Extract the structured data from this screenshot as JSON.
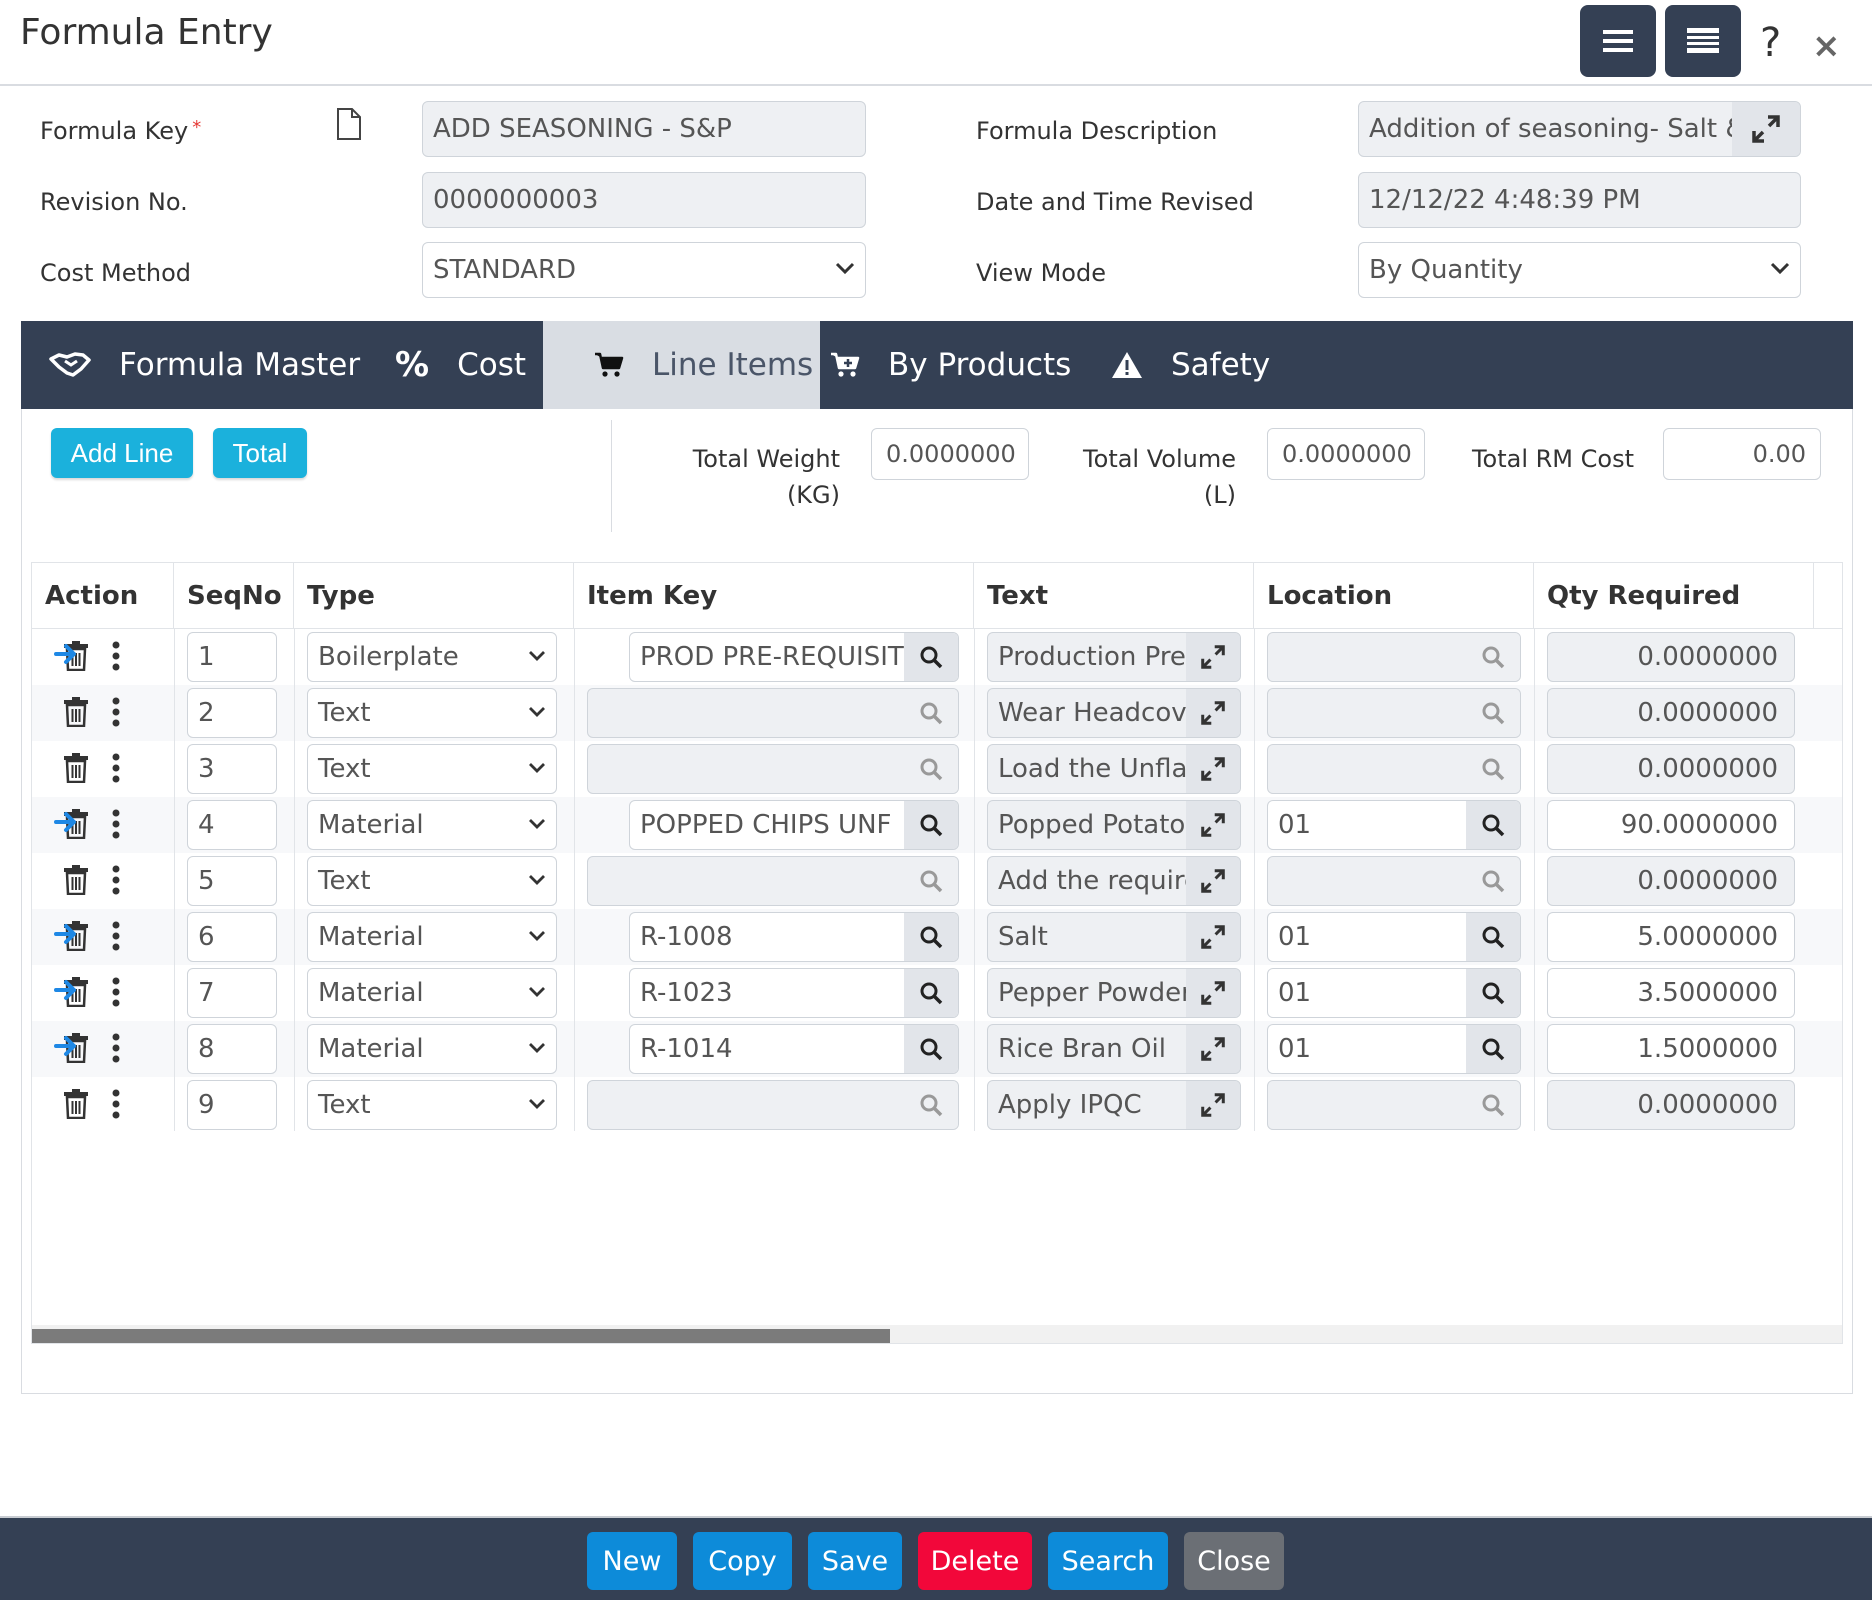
{
  "window": {
    "title": "Formula Entry",
    "help": "?",
    "close": "×"
  },
  "header": {
    "formula_key_label": "Formula Key",
    "required_mark": "*",
    "formula_key_value": "ADD SEASONING - S&P",
    "formula_desc_label": "Formula Description",
    "formula_desc_value": "Addition of seasoning- Salt & F",
    "revision_label": "Revision No.",
    "revision_value": "0000000003",
    "date_label": "Date and Time Revised",
    "date_value": "12/12/22 4:48:39 PM",
    "cost_method_label": "Cost Method",
    "cost_method_value": "STANDARD",
    "view_mode_label": "View Mode",
    "view_mode_value": "By Quantity"
  },
  "tabs": [
    {
      "label": "Formula Master",
      "icon": "handshake-icon"
    },
    {
      "label": "Cost",
      "icon": "percent-icon"
    },
    {
      "label": "Line Items",
      "icon": "cart-icon"
    },
    {
      "label": "By Products",
      "icon": "cart-plus-icon"
    },
    {
      "label": "Safety",
      "icon": "warning-icon"
    }
  ],
  "line_items": {
    "add_line_label": "Add Line",
    "total_label": "Total",
    "total_weight_label_1": "Total Weight",
    "total_weight_label_2": "(KG)",
    "total_weight_value": "0.0000000",
    "total_volume_label_1": "Total Volume",
    "total_volume_label_2": "(L)",
    "total_volume_value": "0.0000000",
    "total_rm_cost_label": "Total RM Cost",
    "total_rm_cost_value": "0.00"
  },
  "grid": {
    "columns": [
      "Action",
      "SeqNo",
      "Type",
      "Item Key",
      "Text",
      "Location",
      "Qty Required"
    ],
    "rows": [
      {
        "seq": "1",
        "type": "Boilerplate",
        "item_key": "PROD PRE-REQUISITE",
        "text": "Production Prer",
        "location": "",
        "qty": "0.0000000",
        "enabled": false
      },
      {
        "seq": "2",
        "type": "Text",
        "item_key": "",
        "text": "Wear Headcove",
        "location": "",
        "qty": "0.0000000",
        "enabled": false
      },
      {
        "seq": "3",
        "type": "Text",
        "item_key": "",
        "text": "Load the Unflav",
        "location": "",
        "qty": "0.0000000",
        "enabled": false
      },
      {
        "seq": "4",
        "type": "Material",
        "item_key": "POPPED CHIPS UNF",
        "text": "Popped Potato",
        "location": "01",
        "qty": "90.0000000",
        "enabled": true
      },
      {
        "seq": "5",
        "type": "Text",
        "item_key": "",
        "text": "Add the require",
        "location": "",
        "qty": "0.0000000",
        "enabled": false
      },
      {
        "seq": "6",
        "type": "Material",
        "item_key": "R-1008",
        "text": "Salt",
        "location": "01",
        "qty": "5.0000000",
        "enabled": true
      },
      {
        "seq": "7",
        "type": "Material",
        "item_key": "R-1023",
        "text": "Pepper Powder",
        "location": "01",
        "qty": "3.5000000",
        "enabled": true
      },
      {
        "seq": "8",
        "type": "Material",
        "item_key": "R-1014",
        "text": "Rice Bran Oil",
        "location": "01",
        "qty": "1.5000000",
        "enabled": true
      },
      {
        "seq": "9",
        "type": "Text",
        "item_key": "",
        "text": "Apply IPQC",
        "location": "",
        "qty": "0.0000000",
        "enabled": false
      }
    ]
  },
  "footer": {
    "new_label": "New",
    "copy_label": "Copy",
    "save_label": "Save",
    "delete_label": "Delete",
    "search_label": "Search",
    "close_label": "Close"
  },
  "colors": {
    "primary_dark": "#344054",
    "accent_blue": "#1bb1dc",
    "footer_blue": "#0d8bd9",
    "delete_red": "#f2073a",
    "close_gray": "#6b6f75",
    "arrow_blue": "#1e88e5"
  }
}
